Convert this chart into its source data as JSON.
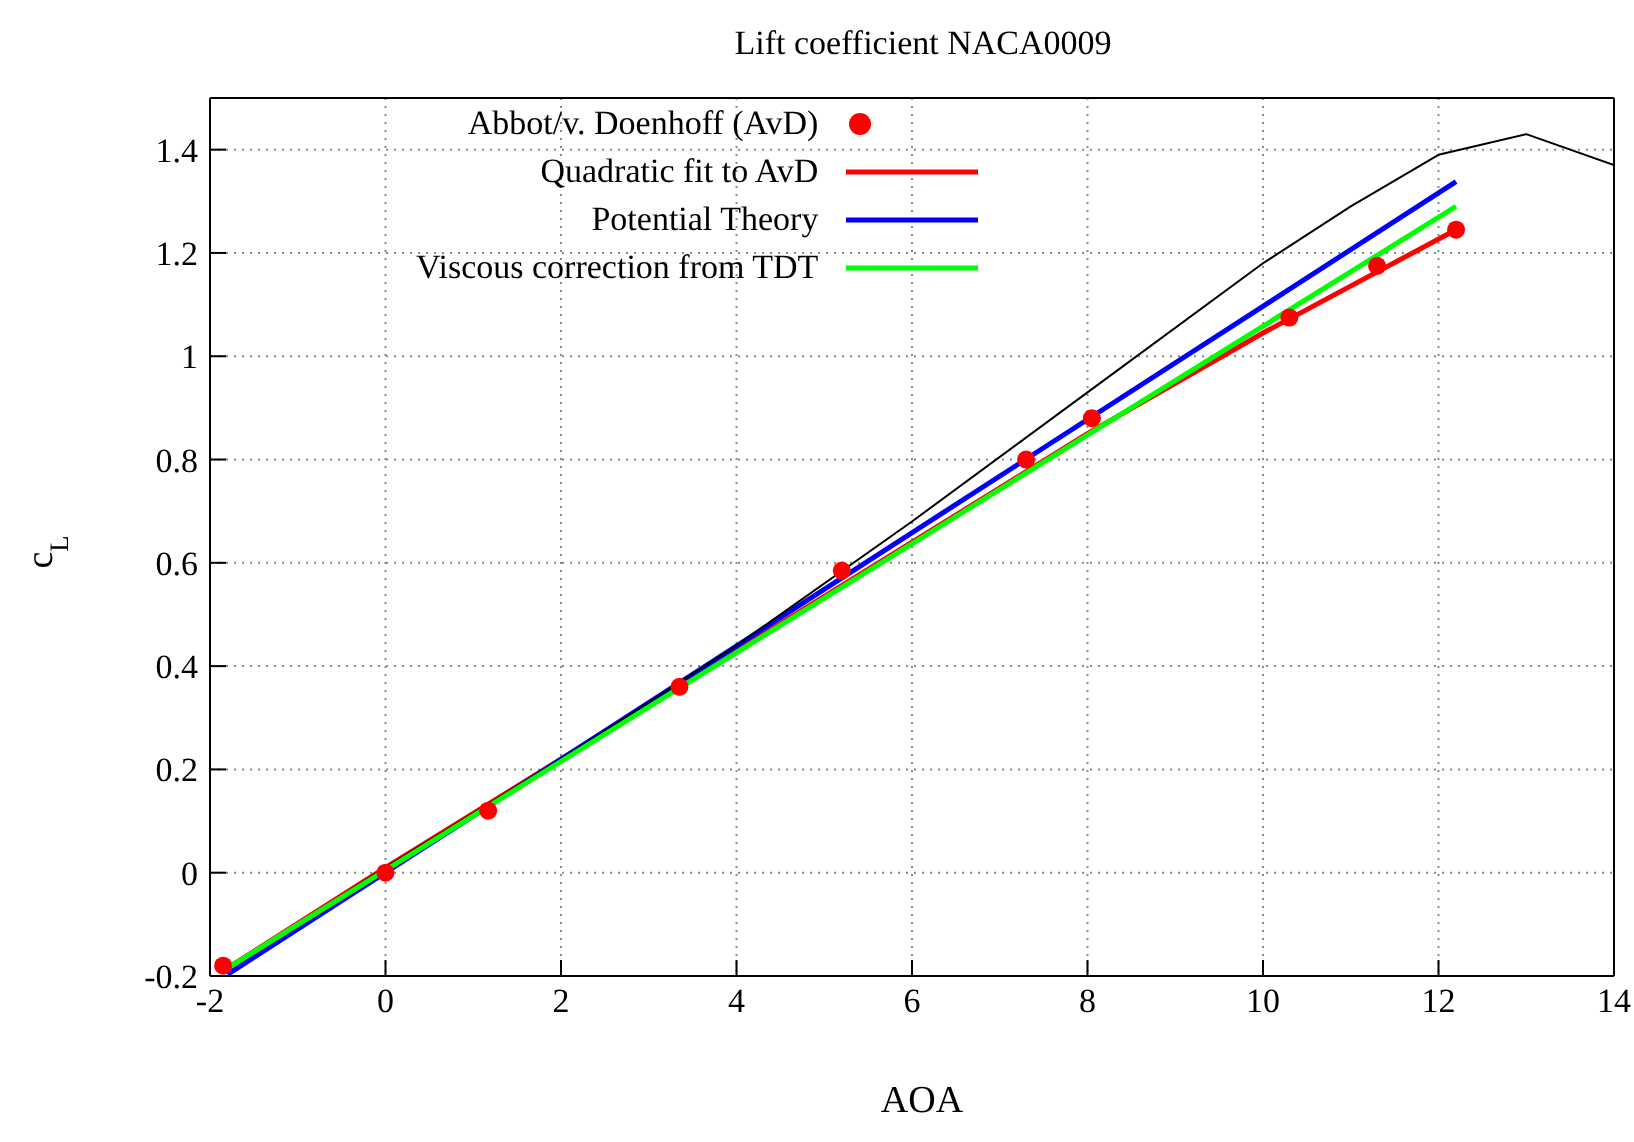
{
  "chart_data": {
    "type": "line",
    "title": "Lift coefficient NACA0009",
    "xlabel": "AOA",
    "ylabel": "c$_{L}$",
    "xlim": [
      -2,
      14
    ],
    "xticks": [
      -2,
      0,
      2,
      4,
      6,
      8,
      10,
      12,
      14
    ],
    "ylim": [
      -0.2,
      1.5
    ],
    "yticks": [
      -0.2,
      0,
      0.2,
      0.4,
      0.6,
      0.8,
      1,
      1.2,
      1.4
    ],
    "grid": true,
    "legend": "top",
    "marker": "none",
    "line_style": "solid",
    "series": [
      {
        "name": "Abbot/v. Doenhoff (AvD)",
        "type": "scatter",
        "marker": "circle",
        "color": "#ff0000",
        "x": [
          -1.85,
          0,
          1.17,
          3.35,
          5.2,
          7.3,
          8.05,
          10.3,
          11.3,
          12.2
        ],
        "values": [
          -0.18,
          0,
          0.12,
          0.36,
          0.585,
          0.8,
          0.88,
          1.075,
          1.175,
          1.245
        ]
      },
      {
        "name": "Quadratic fit to AvD",
        "color": "#ff0000",
        "x": [
          -1.85,
          0,
          4,
          8,
          10,
          12.2
        ],
        "values": [
          -0.19,
          0.01,
          0.43,
          0.85,
          1.045,
          1.245
        ]
      },
      {
        "name": "Potential Theory",
        "color": "#0000ff",
        "x": [
          -1.8,
          12.2
        ],
        "values": [
          -0.197,
          1.338
        ]
      },
      {
        "color": "#000000",
        "x": [
          -1.85,
          0,
          2,
          4,
          6,
          8,
          10,
          11,
          12,
          13,
          14
        ],
        "values": [
          -0.19,
          0.01,
          0.22,
          0.44,
          0.68,
          0.93,
          1.18,
          1.29,
          1.39,
          1.43,
          1.37
        ]
      },
      {
        "name": "Viscous correction from TDT",
        "color": "#00ff00",
        "x": [
          -1.85,
          12.2
        ],
        "values": [
          -0.19,
          1.29
        ]
      }
    ]
  }
}
